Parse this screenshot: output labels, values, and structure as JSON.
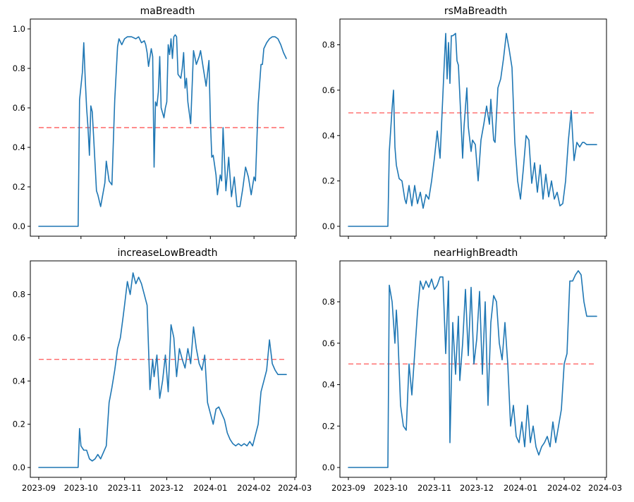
{
  "chart_data": [
    {
      "type": "line",
      "title": "maBreadth",
      "ylim": [
        0,
        1.0
      ],
      "yticks": [
        0.0,
        0.2,
        0.4,
        0.6,
        0.8,
        1.0
      ],
      "ytick_labels": [
        "0.0",
        "0.2",
        "0.4",
        "0.6",
        "0.8",
        "1.0"
      ],
      "reference_line": 0.5,
      "reference_color": "#ff0000",
      "series_color": "#1f77b4",
      "show_xtick_labels": false,
      "series": [
        {
          "x": [
            "2023-09-01",
            "2023-09-29",
            "2023-09-30",
            "2023-10-02",
            "2023-10-03",
            "2023-10-04",
            "2023-10-05",
            "2023-10-06",
            "2023-10-07",
            "2023-10-08",
            "2023-10-09",
            "2023-10-10",
            "2023-10-12",
            "2023-10-13",
            "2023-10-15",
            "2023-10-16",
            "2023-10-18",
            "2023-10-19",
            "2023-10-21",
            "2023-10-23",
            "2023-10-25",
            "2023-10-27",
            "2023-10-28",
            "2023-10-30",
            "2023-11-01",
            "2023-11-03",
            "2023-11-05",
            "2023-11-06",
            "2023-11-09",
            "2023-11-11",
            "2023-11-13",
            "2023-11-15",
            "2023-11-16",
            "2023-11-17",
            "2023-11-18",
            "2023-11-20",
            "2023-11-21",
            "2023-11-22",
            "2023-11-23",
            "2023-11-24",
            "2023-11-25",
            "2023-11-26",
            "2023-11-27",
            "2023-11-29",
            "2023-11-30",
            "2023-12-01",
            "2023-12-02",
            "2023-12-03",
            "2023-12-04",
            "2023-12-05",
            "2023-12-06",
            "2023-12-07",
            "2023-12-08",
            "2023-12-09",
            "2023-12-11",
            "2023-12-12",
            "2023-12-13",
            "2023-12-14",
            "2023-12-15",
            "2023-12-16",
            "2023-12-18",
            "2023-12-20",
            "2023-12-22",
            "2023-12-24",
            "2023-12-25",
            "2023-12-27",
            "2023-12-29",
            "2023-12-31",
            "2024-01-01",
            "2024-01-02",
            "2024-01-03",
            "2024-01-05",
            "2024-01-06",
            "2024-01-08",
            "2024-01-09",
            "2024-01-10",
            "2024-01-12",
            "2024-01-14",
            "2024-01-16",
            "2024-01-18",
            "2024-01-20",
            "2024-01-22",
            "2024-01-24",
            "2024-01-26",
            "2024-01-28",
            "2024-01-30",
            "2024-02-01",
            "2024-02-02",
            "2024-02-04",
            "2024-02-06",
            "2024-02-07",
            "2024-02-08",
            "2024-02-10",
            "2024-02-12",
            "2024-02-14",
            "2024-02-16",
            "2024-02-18",
            "2024-02-20",
            "2024-02-22",
            "2024-02-24"
          ],
          "values": [
            0,
            0,
            0.64,
            0.78,
            0.93,
            0.75,
            0.6,
            0.5,
            0.36,
            0.61,
            0.58,
            0.45,
            0.18,
            0.16,
            0.1,
            0.14,
            0.22,
            0.33,
            0.23,
            0.21,
            0.64,
            0.91,
            0.95,
            0.92,
            0.95,
            0.96,
            0.96,
            0.96,
            0.95,
            0.96,
            0.93,
            0.94,
            0.92,
            0.88,
            0.81,
            0.9,
            0.86,
            0.3,
            0.63,
            0.61,
            0.68,
            0.86,
            0.6,
            0.55,
            0.6,
            0.63,
            0.92,
            0.87,
            0.95,
            0.85,
            0.96,
            0.97,
            0.96,
            0.77,
            0.75,
            0.8,
            0.88,
            0.7,
            0.75,
            0.63,
            0.52,
            0.89,
            0.82,
            0.86,
            0.89,
            0.8,
            0.71,
            0.84,
            0.54,
            0.35,
            0.36,
            0.26,
            0.16,
            0.26,
            0.23,
            0.5,
            0.18,
            0.35,
            0.15,
            0.25,
            0.1,
            0.1,
            0.19,
            0.3,
            0.25,
            0.16,
            0.25,
            0.23,
            0.62,
            0.82,
            0.82,
            0.9,
            0.93,
            0.95,
            0.96,
            0.96,
            0.95,
            0.92,
            0.88,
            0.85
          ]
        }
      ]
    },
    {
      "type": "line",
      "title": "rsMaBreadth",
      "ylim": [
        0,
        0.87
      ],
      "yticks": [
        0.0,
        0.2,
        0.4,
        0.6,
        0.8
      ],
      "ytick_labels": [
        "0.0",
        "0.2",
        "0.4",
        "0.6",
        "0.8"
      ],
      "reference_line": 0.5,
      "reference_color": "#ff0000",
      "series_color": "#1f77b4",
      "show_xtick_labels": false,
      "series": [
        {
          "x": [
            "2023-09-01",
            "2023-09-29",
            "2023-09-30",
            "2023-10-02",
            "2023-10-03",
            "2023-10-04",
            "2023-10-05",
            "2023-10-07",
            "2023-10-09",
            "2023-10-11",
            "2023-10-12",
            "2023-10-14",
            "2023-10-16",
            "2023-10-18",
            "2023-10-20",
            "2023-10-22",
            "2023-10-24",
            "2023-10-26",
            "2023-10-28",
            "2023-10-30",
            "2023-11-01",
            "2023-11-03",
            "2023-11-05",
            "2023-11-07",
            "2023-11-08",
            "2023-11-09",
            "2023-11-10",
            "2023-11-11",
            "2023-11-12",
            "2023-11-13",
            "2023-11-14",
            "2023-11-16",
            "2023-11-17",
            "2023-11-18",
            "2023-11-19",
            "2023-11-21",
            "2023-11-22",
            "2023-11-24",
            "2023-11-25",
            "2023-11-27",
            "2023-11-28",
            "2023-11-30",
            "2023-12-02",
            "2023-12-04",
            "2023-12-06",
            "2023-12-08",
            "2023-12-10",
            "2023-12-11",
            "2023-12-13",
            "2023-12-14",
            "2023-12-16",
            "2023-12-18",
            "2023-12-20",
            "2023-12-22",
            "2023-12-24",
            "2023-12-26",
            "2023-12-28",
            "2023-12-30",
            "2024-01-01",
            "2024-01-03",
            "2024-01-05",
            "2024-01-07",
            "2024-01-09",
            "2024-01-11",
            "2024-01-13",
            "2024-01-15",
            "2024-01-17",
            "2024-01-19",
            "2024-01-21",
            "2024-01-23",
            "2024-01-25",
            "2024-01-27",
            "2024-01-29",
            "2024-01-31",
            "2024-02-02",
            "2024-02-04",
            "2024-02-06",
            "2024-02-08",
            "2024-02-10",
            "2024-02-12",
            "2024-02-14",
            "2024-02-15",
            "2024-02-17",
            "2024-02-18",
            "2024-02-20",
            "2024-02-22",
            "2024-02-24"
          ],
          "values": [
            0,
            0,
            0.33,
            0.52,
            0.6,
            0.35,
            0.27,
            0.21,
            0.2,
            0.12,
            0.1,
            0.18,
            0.09,
            0.18,
            0.1,
            0.15,
            0.08,
            0.14,
            0.12,
            0.2,
            0.3,
            0.42,
            0.3,
            0.58,
            0.72,
            0.85,
            0.65,
            0.81,
            0.63,
            0.84,
            0.84,
            0.85,
            0.73,
            0.71,
            0.58,
            0.3,
            0.44,
            0.61,
            0.44,
            0.33,
            0.38,
            0.36,
            0.2,
            0.38,
            0.45,
            0.53,
            0.45,
            0.56,
            0.38,
            0.37,
            0.61,
            0.65,
            0.74,
            0.85,
            0.78,
            0.7,
            0.37,
            0.2,
            0.12,
            0.25,
            0.4,
            0.38,
            0.19,
            0.28,
            0.15,
            0.27,
            0.12,
            0.23,
            0.13,
            0.2,
            0.12,
            0.15,
            0.09,
            0.1,
            0.2,
            0.38,
            0.51,
            0.29,
            0.37,
            0.35,
            0.37,
            0.37,
            0.36,
            0.36,
            0.36,
            0.36,
            0.36
          ]
        }
      ]
    },
    {
      "type": "line",
      "title": "increaseLowBreadth",
      "ylim": [
        0,
        0.91
      ],
      "yticks": [
        0.0,
        0.2,
        0.4,
        0.6,
        0.8
      ],
      "ytick_labels": [
        "0.0",
        "0.2",
        "0.4",
        "0.6",
        "0.8"
      ],
      "reference_line": 0.5,
      "reference_color": "#ff0000",
      "series_color": "#1f77b4",
      "show_xtick_labels": true,
      "xticks": [
        "2023-09-01",
        "2023-10-01",
        "2023-11-01",
        "2023-12-01",
        "2024-01-01",
        "2024-02-01",
        "2024-03-01"
      ],
      "xtick_labels": [
        "2023-09",
        "2023-10",
        "2023-11",
        "2023-12",
        "2024-01",
        "2024-02",
        "2024-03"
      ],
      "series": [
        {
          "x": [
            "2023-09-01",
            "2023-09-29",
            "2023-09-30",
            "2023-10-01",
            "2023-10-03",
            "2023-10-05",
            "2023-10-07",
            "2023-10-09",
            "2023-10-11",
            "2023-10-13",
            "2023-10-15",
            "2023-10-17",
            "2023-10-19",
            "2023-10-21",
            "2023-10-23",
            "2023-10-25",
            "2023-10-27",
            "2023-10-29",
            "2023-10-31",
            "2023-11-01",
            "2023-11-03",
            "2023-11-05",
            "2023-11-07",
            "2023-11-09",
            "2023-11-11",
            "2023-11-13",
            "2023-11-15",
            "2023-11-17",
            "2023-11-19",
            "2023-11-21",
            "2023-11-22",
            "2023-11-24",
            "2023-11-26",
            "2023-11-28",
            "2023-11-30",
            "2023-12-02",
            "2023-12-04",
            "2023-12-06",
            "2023-12-08",
            "2023-12-10",
            "2023-12-12",
            "2023-12-14",
            "2023-12-16",
            "2023-12-18",
            "2023-12-20",
            "2023-12-22",
            "2023-12-24",
            "2023-12-26",
            "2023-12-28",
            "2023-12-30",
            "2024-01-01",
            "2024-01-03",
            "2024-01-05",
            "2024-01-07",
            "2024-01-09",
            "2024-01-11",
            "2024-01-13",
            "2024-01-15",
            "2024-01-17",
            "2024-01-19",
            "2024-01-21",
            "2024-01-23",
            "2024-01-25",
            "2024-01-27",
            "2024-01-29",
            "2024-01-31",
            "2024-02-02",
            "2024-02-04",
            "2024-02-06",
            "2024-02-08",
            "2024-02-10",
            "2024-02-12",
            "2024-02-14",
            "2024-02-16",
            "2024-02-18",
            "2024-02-20",
            "2024-02-22",
            "2024-02-24"
          ],
          "values": [
            0,
            0,
            0.18,
            0.1,
            0.08,
            0.08,
            0.04,
            0.03,
            0.04,
            0.06,
            0.04,
            0.07,
            0.1,
            0.3,
            0.37,
            0.45,
            0.55,
            0.6,
            0.7,
            0.75,
            0.86,
            0.8,
            0.9,
            0.85,
            0.88,
            0.85,
            0.8,
            0.75,
            0.36,
            0.5,
            0.42,
            0.52,
            0.32,
            0.4,
            0.52,
            0.35,
            0.66,
            0.6,
            0.42,
            0.55,
            0.5,
            0.46,
            0.55,
            0.48,
            0.65,
            0.55,
            0.48,
            0.45,
            0.52,
            0.3,
            0.25,
            0.2,
            0.27,
            0.28,
            0.25,
            0.22,
            0.16,
            0.13,
            0.11,
            0.1,
            0.11,
            0.1,
            0.11,
            0.1,
            0.12,
            0.1,
            0.15,
            0.2,
            0.35,
            0.4,
            0.45,
            0.59,
            0.48,
            0.45,
            0.43,
            0.43,
            0.43,
            0.43
          ]
        }
      ]
    },
    {
      "type": "line",
      "title": "nearHighBreadth",
      "ylim": [
        0,
        0.95
      ],
      "yticks": [
        0.0,
        0.2,
        0.4,
        0.6,
        0.8
      ],
      "ytick_labels": [
        "0.0",
        "0.2",
        "0.4",
        "0.6",
        "0.8"
      ],
      "reference_line": 0.5,
      "reference_color": "#ff0000",
      "series_color": "#1f77b4",
      "show_xtick_labels": true,
      "xticks": [
        "2023-09-01",
        "2023-10-01",
        "2023-11-01",
        "2023-12-01",
        "2024-01-01",
        "2024-02-01",
        "2024-03-01"
      ],
      "xtick_labels": [
        "2023-09",
        "2023-10",
        "2023-11",
        "2023-12",
        "2024-01",
        "2024-02",
        "2024-03"
      ],
      "series": [
        {
          "x": [
            "2023-09-01",
            "2023-09-29",
            "2023-09-30",
            "2023-10-02",
            "2023-10-04",
            "2023-10-05",
            "2023-10-06",
            "2023-10-08",
            "2023-10-10",
            "2023-10-12",
            "2023-10-14",
            "2023-10-16",
            "2023-10-18",
            "2023-10-20",
            "2023-10-22",
            "2023-10-24",
            "2023-10-26",
            "2023-10-28",
            "2023-10-30",
            "2023-11-01",
            "2023-11-03",
            "2023-11-05",
            "2023-11-07",
            "2023-11-09",
            "2023-11-11",
            "2023-11-12",
            "2023-11-14",
            "2023-11-16",
            "2023-11-18",
            "2023-11-19",
            "2023-11-21",
            "2023-11-23",
            "2023-11-25",
            "2023-11-27",
            "2023-11-29",
            "2023-12-01",
            "2023-12-03",
            "2023-12-05",
            "2023-12-07",
            "2023-12-09",
            "2023-12-11",
            "2023-12-13",
            "2023-12-15",
            "2023-12-17",
            "2023-12-19",
            "2023-12-21",
            "2023-12-23",
            "2023-12-25",
            "2023-12-27",
            "2023-12-29",
            "2023-12-31",
            "2024-01-02",
            "2024-01-04",
            "2024-01-06",
            "2024-01-08",
            "2024-01-10",
            "2024-01-12",
            "2024-01-14",
            "2024-01-16",
            "2024-01-18",
            "2024-01-20",
            "2024-01-22",
            "2024-01-24",
            "2024-01-26",
            "2024-01-28",
            "2024-01-30",
            "2024-02-01",
            "2024-02-03",
            "2024-02-05",
            "2024-02-07",
            "2024-02-09",
            "2024-02-11",
            "2024-02-13",
            "2024-02-15",
            "2024-02-17",
            "2024-02-19",
            "2024-02-21",
            "2024-02-23",
            "2024-02-24"
          ],
          "values": [
            0,
            0,
            0.88,
            0.8,
            0.6,
            0.76,
            0.65,
            0.3,
            0.2,
            0.18,
            0.5,
            0.35,
            0.55,
            0.75,
            0.9,
            0.86,
            0.9,
            0.87,
            0.91,
            0.86,
            0.88,
            0.92,
            0.92,
            0.55,
            0.9,
            0.12,
            0.7,
            0.45,
            0.73,
            0.42,
            0.6,
            0.86,
            0.54,
            0.87,
            0.5,
            0.62,
            0.85,
            0.45,
            0.8,
            0.3,
            0.7,
            0.83,
            0.8,
            0.6,
            0.52,
            0.7,
            0.5,
            0.2,
            0.3,
            0.15,
            0.12,
            0.22,
            0.1,
            0.3,
            0.12,
            0.2,
            0.1,
            0.06,
            0.1,
            0.12,
            0.15,
            0.1,
            0.22,
            0.12,
            0.2,
            0.28,
            0.5,
            0.55,
            0.9,
            0.9,
            0.93,
            0.95,
            0.93,
            0.8,
            0.73,
            0.73,
            0.73,
            0.73,
            0.73
          ]
        }
      ]
    }
  ]
}
